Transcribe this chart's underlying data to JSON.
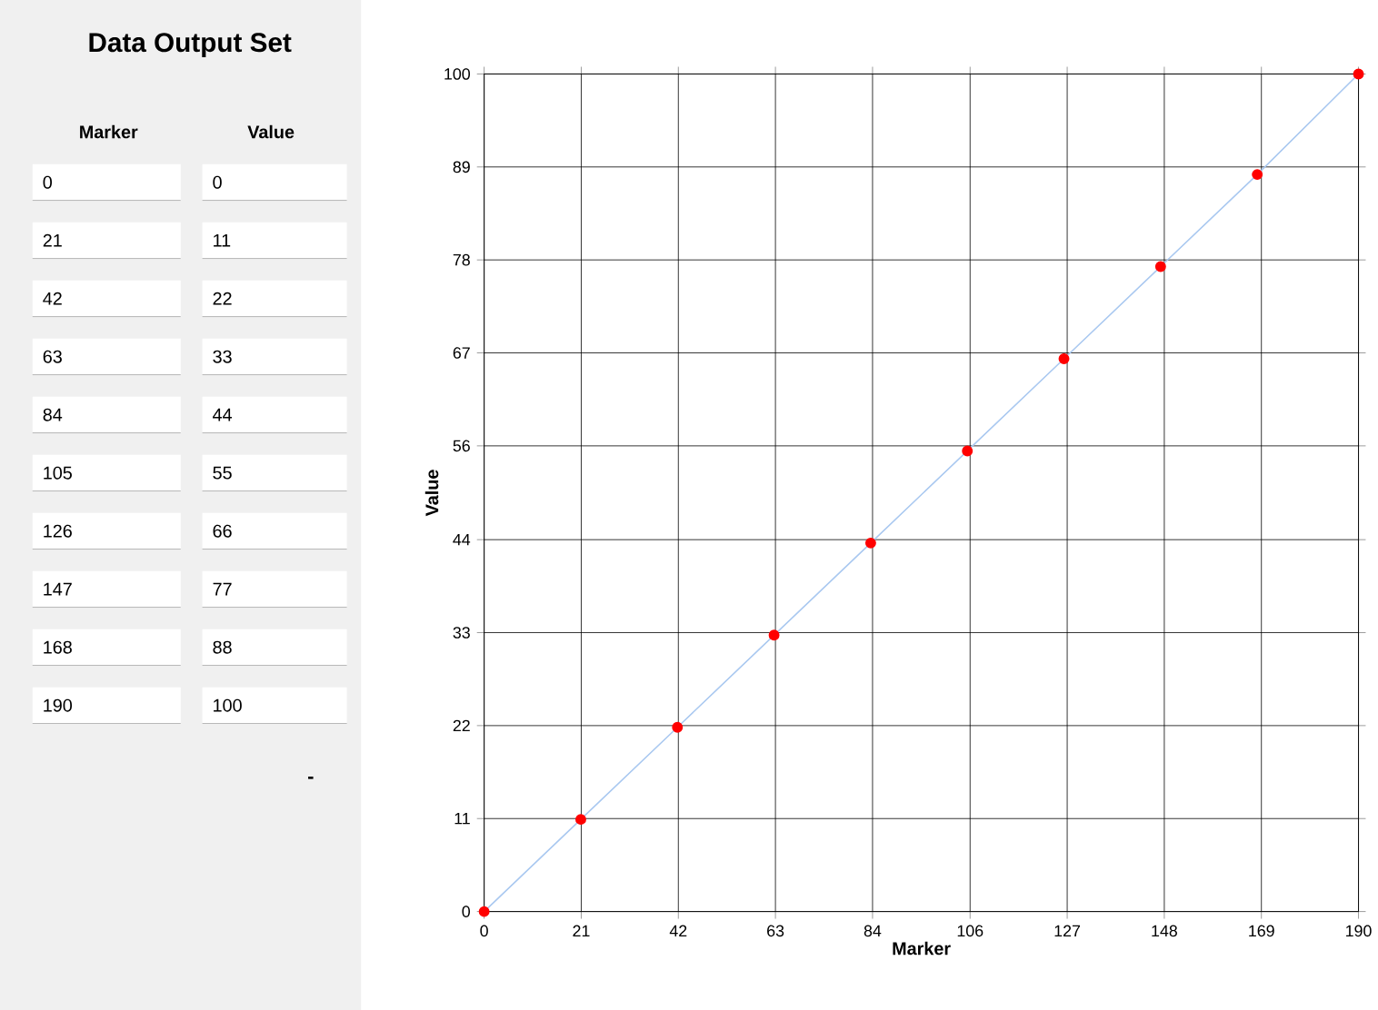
{
  "chart_data": [
    {
      "type": "other",
      "title": "Data Output Set",
      "xlabel": "Marker",
      "ylabel": "Value",
      "categories": [
        "0",
        "21",
        "42",
        "63",
        "84",
        "105",
        "126",
        "147",
        "168",
        "190"
      ],
      "annotations": [
        "0",
        "11",
        "22",
        "33",
        "44",
        "55",
        "66",
        "77",
        "88",
        "100",
        "-"
      ]
    },
    {
      "type": "line",
      "xlabel": "Marker",
      "ylabel": "Value",
      "x": [
        0,
        21,
        42,
        63,
        84,
        105,
        126,
        147,
        168,
        190
      ],
      "series": [
        {
          "type": "line",
          "color": "#a9c8f0",
          "line_style": "solid",
          "marker": "none",
          "values": [
            0,
            11,
            22,
            33,
            44,
            55,
            66,
            77,
            88,
            100
          ]
        },
        {
          "type": "scatter",
          "color": "#ff0000",
          "marker": "circle",
          "values": [
            0,
            11,
            22,
            33,
            44,
            55,
            66,
            77,
            88,
            100
          ]
        }
      ],
      "xlim": [
        0,
        190
      ],
      "xticks": [
        0,
        {
          "value": 21.1,
          "label": "21"
        },
        {
          "value": 42.2,
          "label": "42"
        },
        {
          "value": 63.3,
          "label": "63"
        },
        {
          "value": 84.4,
          "label": "84"
        },
        {
          "value": 105.6,
          "label": "106"
        },
        {
          "value": 126.7,
          "label": "127"
        },
        {
          "value": 147.8,
          "label": "148"
        },
        {
          "value": 168.9,
          "label": "169"
        },
        190
      ],
      "ylim": [
        0,
        100
      ],
      "yticks": [
        0,
        {
          "value": 11.1,
          "label": "11"
        },
        {
          "value": 22.2,
          "label": "22"
        },
        {
          "value": 33.3,
          "label": "33"
        },
        {
          "value": 44.4,
          "label": "44"
        },
        {
          "value": 55.6,
          "label": "56"
        },
        {
          "value": 66.7,
          "label": "67"
        },
        {
          "value": 77.8,
          "label": "78"
        },
        {
          "value": 88.9,
          "label": "89"
        },
        100
      ],
      "grid": true
    }
  ]
}
